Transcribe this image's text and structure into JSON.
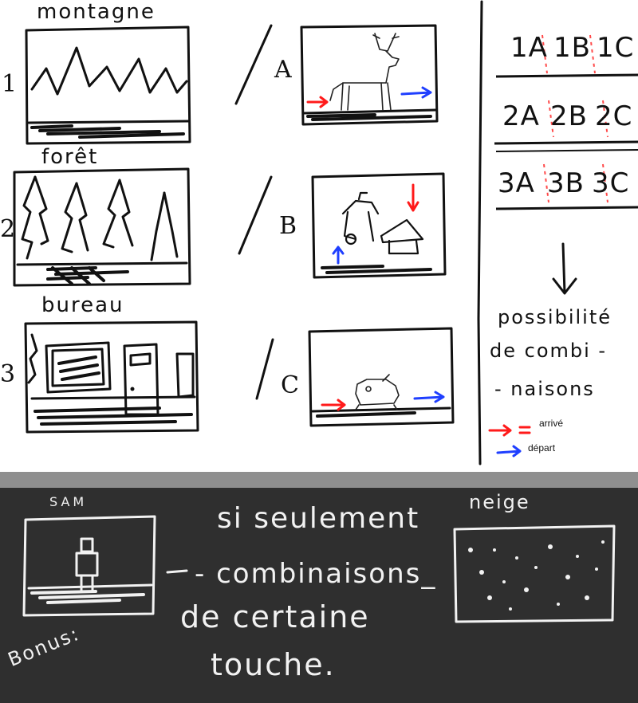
{
  "scenes_left": [
    {
      "number": "1",
      "title": "montagne"
    },
    {
      "number": "2",
      "title": "forêt"
    },
    {
      "number": "3",
      "title": "bureau"
    }
  ],
  "scenes_middle": [
    {
      "letter": "A"
    },
    {
      "letter": "B"
    },
    {
      "letter": "C"
    }
  ],
  "combinations": [
    {
      "a": "1A",
      "b": "1B",
      "c": "1C"
    },
    {
      "a": "2A",
      "b": "2B",
      "c": "2C"
    },
    {
      "a": "3A",
      "b": "3B",
      "c": "3C"
    }
  ],
  "note": {
    "line1": "possibilité",
    "line2": "de combi -",
    "line3": "- naisons"
  },
  "legend": {
    "arrive": "arrivé",
    "depart": "départ",
    "arrive_color": "#ff1a1a",
    "depart_color": "#1f3fff"
  },
  "bonus": {
    "label": "Bonus:",
    "sam_title": "SAM",
    "neige_title": "neige",
    "line1": "si seulement",
    "line2": "- combinaisons_",
    "line3": "de certaine",
    "line4": "touche."
  },
  "colors": {
    "bonus_bg": "#2f2f2f",
    "separator": "#8f8f8f",
    "ink": "#111111",
    "chalk": "#f2f2f2"
  }
}
